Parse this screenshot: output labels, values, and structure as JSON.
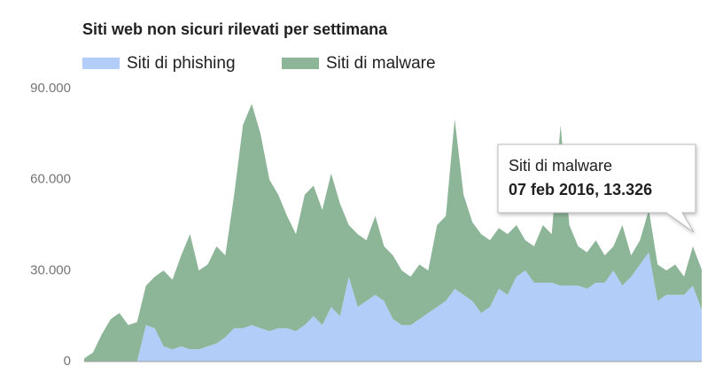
{
  "chart_data": {
    "type": "stacked-area",
    "title": "Siti web non sicuri rilevati per settimana",
    "ylim": [
      0,
      90000
    ],
    "yticks": [
      0,
      {
        "value": 30000,
        "label": "30.000"
      },
      {
        "value": 60000,
        "label": "60.000"
      },
      {
        "value": 90000,
        "label": "90.000"
      }
    ],
    "grid": false,
    "series": [
      {
        "name": "Siti di phishing",
        "color": "#b3cdf9",
        "values": [
          0,
          0,
          0,
          0,
          0,
          0,
          0,
          12000,
          11000,
          5000,
          4000,
          5000,
          4000,
          4000,
          5000,
          6000,
          8000,
          11000,
          11000,
          12000,
          11000,
          10000,
          11000,
          11000,
          10000,
          12000,
          15000,
          12000,
          18000,
          15000,
          28000,
          18000,
          20000,
          22000,
          20000,
          14000,
          12000,
          12000,
          14000,
          16000,
          18000,
          20000,
          24000,
          22000,
          20000,
          16000,
          18000,
          24000,
          22000,
          28000,
          30000,
          26000,
          26000,
          26000,
          25000,
          25000,
          25000,
          24000,
          26000,
          26000,
          30000,
          25000,
          28000,
          32000,
          36000,
          20000,
          22000,
          22000,
          22000,
          25000,
          17000
        ]
      },
      {
        "name": "Siti di malware",
        "color": "#8db598",
        "values": [
          1000,
          3000,
          9000,
          14000,
          16000,
          12000,
          13000,
          13000,
          17000,
          25000,
          23000,
          30000,
          38000,
          26000,
          27000,
          32000,
          27000,
          44000,
          67000,
          73000,
          64000,
          50000,
          44000,
          37000,
          32000,
          43000,
          43000,
          38000,
          44000,
          37000,
          17000,
          24000,
          20000,
          26000,
          18000,
          21000,
          18000,
          16000,
          18000,
          14000,
          27000,
          28000,
          56000,
          33000,
          26000,
          26000,
          22000,
          20000,
          20000,
          17000,
          10000,
          12000,
          19000,
          16000,
          53000,
          20000,
          13000,
          12000,
          14000,
          9000,
          8000,
          20000,
          7000,
          8000,
          14000,
          12000,
          8000,
          10000,
          6000,
          13000,
          13326
        ]
      }
    ],
    "tooltip": {
      "title": "Siti di malware",
      "text": "07 feb 2016, 13.326"
    }
  }
}
